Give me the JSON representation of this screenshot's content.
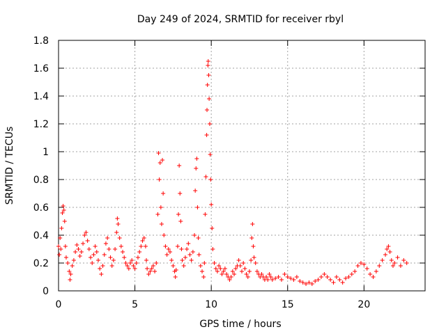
{
  "chart_data": {
    "type": "scatter",
    "title": "Day 249 of 2024, SRMTID for receiver rbyl",
    "xlabel": "GPS time / hours",
    "ylabel": "SRMTID / TECUs",
    "xlim": [
      0,
      24
    ],
    "ylim": [
      0,
      1.8
    ],
    "x_ticks": [
      0,
      5,
      10,
      15,
      20
    ],
    "x_tick_labels": [
      "0",
      "5",
      "10",
      "15",
      "20"
    ],
    "y_ticks": [
      0,
      0.2,
      0.4,
      0.6,
      0.8,
      1.0,
      1.2,
      1.4,
      1.6,
      1.8
    ],
    "y_tick_labels": [
      "0",
      "0.2",
      "0.4",
      "0.6",
      "0.8",
      "1",
      "1.2",
      "1.4",
      "1.6",
      "1.8"
    ],
    "grid": true,
    "marker": "+",
    "color": "#ff0000",
    "series": [
      {
        "name": "SRMTID",
        "points": [
          [
            0.0,
            0.32
          ],
          [
            0.05,
            0.26
          ],
          [
            0.1,
            0.38
          ],
          [
            0.15,
            0.3
          ],
          [
            0.2,
            0.45
          ],
          [
            0.25,
            0.56
          ],
          [
            0.3,
            0.61
          ],
          [
            0.35,
            0.58
          ],
          [
            0.4,
            0.5
          ],
          [
            0.45,
            0.32
          ],
          [
            0.5,
            0.24
          ],
          [
            0.6,
            0.2
          ],
          [
            0.7,
            0.14
          ],
          [
            0.75,
            0.08
          ],
          [
            0.8,
            0.12
          ],
          [
            0.9,
            0.18
          ],
          [
            1.0,
            0.22
          ],
          [
            1.1,
            0.28
          ],
          [
            1.2,
            0.33
          ],
          [
            1.3,
            0.3
          ],
          [
            1.4,
            0.25
          ],
          [
            1.5,
            0.28
          ],
          [
            1.6,
            0.34
          ],
          [
            1.7,
            0.4
          ],
          [
            1.8,
            0.42
          ],
          [
            1.9,
            0.36
          ],
          [
            2.0,
            0.3
          ],
          [
            2.1,
            0.24
          ],
          [
            2.2,
            0.2
          ],
          [
            2.3,
            0.26
          ],
          [
            2.4,
            0.32
          ],
          [
            2.5,
            0.28
          ],
          [
            2.6,
            0.22
          ],
          [
            2.7,
            0.16
          ],
          [
            2.8,
            0.12
          ],
          [
            2.9,
            0.18
          ],
          [
            3.0,
            0.26
          ],
          [
            3.1,
            0.34
          ],
          [
            3.2,
            0.38
          ],
          [
            3.3,
            0.3
          ],
          [
            3.4,
            0.24
          ],
          [
            3.5,
            0.18
          ],
          [
            3.6,
            0.22
          ],
          [
            3.7,
            0.3
          ],
          [
            3.8,
            0.42
          ],
          [
            3.85,
            0.52
          ],
          [
            3.9,
            0.48
          ],
          [
            4.0,
            0.38
          ],
          [
            4.1,
            0.32
          ],
          [
            4.2,
            0.28
          ],
          [
            4.3,
            0.24
          ],
          [
            4.4,
            0.2
          ],
          [
            4.5,
            0.18
          ],
          [
            4.6,
            0.16
          ],
          [
            4.7,
            0.2
          ],
          [
            4.8,
            0.22
          ],
          [
            4.9,
            0.18
          ],
          [
            5.0,
            0.16
          ],
          [
            5.1,
            0.2
          ],
          [
            5.2,
            0.24
          ],
          [
            5.3,
            0.28
          ],
          [
            5.4,
            0.32
          ],
          [
            5.5,
            0.36
          ],
          [
            5.6,
            0.38
          ],
          [
            5.7,
            0.32
          ],
          [
            5.75,
            0.22
          ],
          [
            5.8,
            0.16
          ],
          [
            5.9,
            0.12
          ],
          [
            6.0,
            0.14
          ],
          [
            6.1,
            0.16
          ],
          [
            6.2,
            0.18
          ],
          [
            6.3,
            0.14
          ],
          [
            6.4,
            0.2
          ],
          [
            6.5,
            0.55
          ],
          [
            6.55,
            0.99
          ],
          [
            6.6,
            0.8
          ],
          [
            6.65,
            0.92
          ],
          [
            6.7,
            0.6
          ],
          [
            6.75,
            0.48
          ],
          [
            6.8,
            0.94
          ],
          [
            6.85,
            0.7
          ],
          [
            6.9,
            0.4
          ],
          [
            7.0,
            0.32
          ],
          [
            7.1,
            0.26
          ],
          [
            7.2,
            0.3
          ],
          [
            7.3,
            0.28
          ],
          [
            7.4,
            0.22
          ],
          [
            7.5,
            0.18
          ],
          [
            7.6,
            0.14
          ],
          [
            7.65,
            0.1
          ],
          [
            7.7,
            0.15
          ],
          [
            7.8,
            0.32
          ],
          [
            7.85,
            0.55
          ],
          [
            7.9,
            0.9
          ],
          [
            7.95,
            0.7
          ],
          [
            8.0,
            0.5
          ],
          [
            8.05,
            0.3
          ],
          [
            8.1,
            0.22
          ],
          [
            8.2,
            0.18
          ],
          [
            8.3,
            0.24
          ],
          [
            8.4,
            0.3
          ],
          [
            8.5,
            0.34
          ],
          [
            8.6,
            0.26
          ],
          [
            8.7,
            0.22
          ],
          [
            8.8,
            0.28
          ],
          [
            8.9,
            0.4
          ],
          [
            8.95,
            0.72
          ],
          [
            9.0,
            0.88
          ],
          [
            9.05,
            0.95
          ],
          [
            9.1,
            0.6
          ],
          [
            9.15,
            0.38
          ],
          [
            9.2,
            0.26
          ],
          [
            9.3,
            0.18
          ],
          [
            9.4,
            0.14
          ],
          [
            9.5,
            0.1
          ],
          [
            9.55,
            0.2
          ],
          [
            9.6,
            0.55
          ],
          [
            9.65,
            0.82
          ],
          [
            9.7,
            1.12
          ],
          [
            9.72,
            1.3
          ],
          [
            9.75,
            1.48
          ],
          [
            9.78,
            1.62
          ],
          [
            9.8,
            1.65
          ],
          [
            9.83,
            1.55
          ],
          [
            9.86,
            1.38
          ],
          [
            9.9,
            1.2
          ],
          [
            9.93,
            0.98
          ],
          [
            9.96,
            0.8
          ],
          [
            10.0,
            0.62
          ],
          [
            10.05,
            0.45
          ],
          [
            10.1,
            0.3
          ],
          [
            10.2,
            0.2
          ],
          [
            10.3,
            0.16
          ],
          [
            10.4,
            0.14
          ],
          [
            10.5,
            0.18
          ],
          [
            10.6,
            0.16
          ],
          [
            10.7,
            0.12
          ],
          [
            10.8,
            0.14
          ],
          [
            10.9,
            0.16
          ],
          [
            11.0,
            0.12
          ],
          [
            11.1,
            0.1
          ],
          [
            11.2,
            0.08
          ],
          [
            11.3,
            0.1
          ],
          [
            11.4,
            0.14
          ],
          [
            11.5,
            0.12
          ],
          [
            11.6,
            0.16
          ],
          [
            11.7,
            0.18
          ],
          [
            11.8,
            0.22
          ],
          [
            11.9,
            0.18
          ],
          [
            12.0,
            0.14
          ],
          [
            12.1,
            0.2
          ],
          [
            12.2,
            0.16
          ],
          [
            12.3,
            0.12
          ],
          [
            12.4,
            0.1
          ],
          [
            12.5,
            0.14
          ],
          [
            12.6,
            0.22
          ],
          [
            12.65,
            0.38
          ],
          [
            12.7,
            0.48
          ],
          [
            12.75,
            0.32
          ],
          [
            12.8,
            0.24
          ],
          [
            12.9,
            0.2
          ],
          [
            13.0,
            0.14
          ],
          [
            13.1,
            0.12
          ],
          [
            13.2,
            0.1
          ],
          [
            13.3,
            0.12
          ],
          [
            13.4,
            0.1
          ],
          [
            13.5,
            0.08
          ],
          [
            13.6,
            0.1
          ],
          [
            13.7,
            0.08
          ],
          [
            13.8,
            0.12
          ],
          [
            13.9,
            0.1
          ],
          [
            14.0,
            0.08
          ],
          [
            14.2,
            0.09
          ],
          [
            14.4,
            0.1
          ],
          [
            14.6,
            0.08
          ],
          [
            14.8,
            0.12
          ],
          [
            15.0,
            0.1
          ],
          [
            15.2,
            0.09
          ],
          [
            15.4,
            0.08
          ],
          [
            15.6,
            0.1
          ],
          [
            15.8,
            0.07
          ],
          [
            16.0,
            0.06
          ],
          [
            16.2,
            0.05
          ],
          [
            16.4,
            0.06
          ],
          [
            16.6,
            0.05
          ],
          [
            16.8,
            0.07
          ],
          [
            17.0,
            0.08
          ],
          [
            17.2,
            0.1
          ],
          [
            17.4,
            0.12
          ],
          [
            17.6,
            0.1
          ],
          [
            17.8,
            0.08
          ],
          [
            18.0,
            0.06
          ],
          [
            18.2,
            0.1
          ],
          [
            18.4,
            0.08
          ],
          [
            18.6,
            0.06
          ],
          [
            18.8,
            0.09
          ],
          [
            19.0,
            0.1
          ],
          [
            19.2,
            0.12
          ],
          [
            19.4,
            0.14
          ],
          [
            19.6,
            0.18
          ],
          [
            19.8,
            0.2
          ],
          [
            20.0,
            0.19
          ],
          [
            20.2,
            0.16
          ],
          [
            20.4,
            0.12
          ],
          [
            20.6,
            0.1
          ],
          [
            20.8,
            0.14
          ],
          [
            21.0,
            0.18
          ],
          [
            21.2,
            0.22
          ],
          [
            21.4,
            0.26
          ],
          [
            21.5,
            0.3
          ],
          [
            21.6,
            0.32
          ],
          [
            21.7,
            0.28
          ],
          [
            21.8,
            0.22
          ],
          [
            21.9,
            0.18
          ],
          [
            22.0,
            0.2
          ],
          [
            22.2,
            0.24
          ],
          [
            22.4,
            0.18
          ],
          [
            22.6,
            0.22
          ],
          [
            22.8,
            0.2
          ]
        ]
      }
    ]
  }
}
